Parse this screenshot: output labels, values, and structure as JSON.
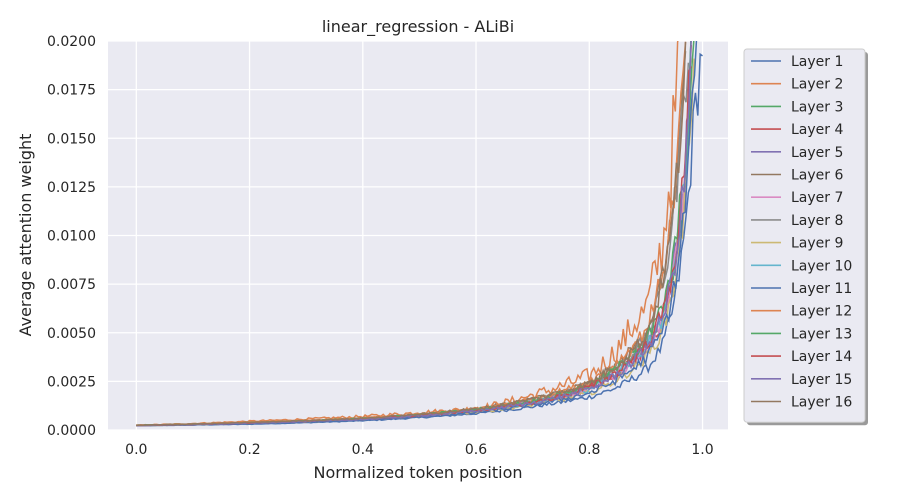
{
  "chart_data": {
    "type": "line",
    "title": "linear_regression - ALiBi",
    "xlabel": "Normalized token position",
    "ylabel": "Average attention weight",
    "xlim": [
      -0.05,
      1.045
    ],
    "ylim": [
      0,
      0.02
    ],
    "xticks": [
      "0.0",
      "0.2",
      "0.4",
      "0.6",
      "0.8",
      "1.0"
    ],
    "yticks": [
      "0.0000",
      "0.0025",
      "0.0050",
      "0.0075",
      "0.0100",
      "0.0125",
      "0.0150",
      "0.0175",
      "0.0200"
    ],
    "grid": true,
    "legend_position": "outside right, top",
    "series": [
      {
        "name": "Layer 1",
        "color": "#4c72b0",
        "values": [
          [
            0.0,
            0.00022
          ],
          [
            0.2,
            0.0003
          ],
          [
            0.4,
            0.00048
          ],
          [
            0.6,
            0.00085
          ],
          [
            0.7,
            0.0012
          ],
          [
            0.8,
            0.0017
          ],
          [
            0.85,
            0.0022
          ],
          [
            0.9,
            0.0031
          ],
          [
            0.93,
            0.0044
          ],
          [
            0.95,
            0.0065
          ],
          [
            0.97,
            0.0105
          ],
          [
            0.985,
            0.016
          ],
          [
            1.0,
            0.02
          ]
        ]
      },
      {
        "name": "Layer 2",
        "color": "#dd8452",
        "values": [
          [
            0.0,
            0.00025
          ],
          [
            0.2,
            0.00045
          ],
          [
            0.4,
            0.0007
          ],
          [
            0.5,
            0.0009
          ],
          [
            0.6,
            0.0011
          ],
          [
            0.7,
            0.0018
          ],
          [
            0.8,
            0.0028
          ],
          [
            0.85,
            0.0042
          ],
          [
            0.88,
            0.0055
          ],
          [
            0.9,
            0.0062
          ],
          [
            0.92,
            0.0085
          ],
          [
            0.93,
            0.0095
          ],
          [
            0.94,
            0.0125
          ],
          [
            0.95,
            0.0155
          ],
          [
            0.96,
            0.02
          ]
        ]
      },
      {
        "name": "Layer 3",
        "color": "#55a868",
        "values": [
          [
            0.0,
            0.00024
          ],
          [
            0.2,
            0.00038
          ],
          [
            0.4,
            0.00058
          ],
          [
            0.6,
            0.00105
          ],
          [
            0.7,
            0.0015
          ],
          [
            0.8,
            0.0023
          ],
          [
            0.85,
            0.0032
          ],
          [
            0.9,
            0.0045
          ],
          [
            0.93,
            0.006
          ],
          [
            0.95,
            0.0085
          ],
          [
            0.97,
            0.0135
          ],
          [
            0.985,
            0.02
          ]
        ]
      },
      {
        "name": "Layer 4",
        "color": "#c44e52",
        "values": [
          [
            0.0,
            0.00023
          ],
          [
            0.2,
            0.00036
          ],
          [
            0.4,
            0.00056
          ],
          [
            0.6,
            0.001
          ],
          [
            0.7,
            0.0014
          ],
          [
            0.8,
            0.0021
          ],
          [
            0.85,
            0.0029
          ],
          [
            0.9,
            0.0042
          ],
          [
            0.93,
            0.0058
          ],
          [
            0.95,
            0.0082
          ],
          [
            0.97,
            0.013
          ],
          [
            0.98,
            0.02
          ]
        ]
      },
      {
        "name": "Layer 5",
        "color": "#8172b3",
        "values": [
          [
            0.0,
            0.00024
          ],
          [
            0.2,
            0.00037
          ],
          [
            0.4,
            0.00057
          ],
          [
            0.6,
            0.001
          ],
          [
            0.7,
            0.0014
          ],
          [
            0.8,
            0.0022
          ],
          [
            0.85,
            0.003
          ],
          [
            0.9,
            0.0043
          ],
          [
            0.93,
            0.006
          ],
          [
            0.95,
            0.0086
          ],
          [
            0.97,
            0.0138
          ],
          [
            0.98,
            0.02
          ]
        ]
      },
      {
        "name": "Layer 6",
        "color": "#937860",
        "values": [
          [
            0.0,
            0.00024
          ],
          [
            0.2,
            0.00038
          ],
          [
            0.4,
            0.0006
          ],
          [
            0.6,
            0.0011
          ],
          [
            0.7,
            0.0016
          ],
          [
            0.8,
            0.0024
          ],
          [
            0.85,
            0.0034
          ],
          [
            0.9,
            0.005
          ],
          [
            0.92,
            0.0068
          ],
          [
            0.94,
            0.0095
          ],
          [
            0.96,
            0.015
          ],
          [
            0.97,
            0.02
          ]
        ]
      },
      {
        "name": "Layer 7",
        "color": "#da8bc3",
        "values": [
          [
            0.0,
            0.00023
          ],
          [
            0.2,
            0.00036
          ],
          [
            0.4,
            0.00055
          ],
          [
            0.6,
            0.00098
          ],
          [
            0.7,
            0.0014
          ],
          [
            0.8,
            0.0021
          ],
          [
            0.85,
            0.0029
          ],
          [
            0.9,
            0.0042
          ],
          [
            0.93,
            0.0058
          ],
          [
            0.95,
            0.0083
          ],
          [
            0.97,
            0.0132
          ],
          [
            0.98,
            0.02
          ]
        ]
      },
      {
        "name": "Layer 8",
        "color": "#8c8c8c",
        "values": [
          [
            0.0,
            0.00024
          ],
          [
            0.2,
            0.00038
          ],
          [
            0.4,
            0.00058
          ],
          [
            0.6,
            0.00105
          ],
          [
            0.7,
            0.0015
          ],
          [
            0.8,
            0.0023
          ],
          [
            0.85,
            0.0033
          ],
          [
            0.9,
            0.0047
          ],
          [
            0.92,
            0.0064
          ],
          [
            0.94,
            0.009
          ],
          [
            0.96,
            0.0145
          ],
          [
            0.975,
            0.02
          ]
        ]
      },
      {
        "name": "Layer 9",
        "color": "#ccb974",
        "values": [
          [
            0.0,
            0.00022
          ],
          [
            0.2,
            0.00034
          ],
          [
            0.4,
            0.00052
          ],
          [
            0.6,
            0.00092
          ],
          [
            0.7,
            0.0013
          ],
          [
            0.8,
            0.0019
          ],
          [
            0.85,
            0.0026
          ],
          [
            0.9,
            0.0037
          ],
          [
            0.93,
            0.0052
          ],
          [
            0.95,
            0.0075
          ],
          [
            0.97,
            0.012
          ],
          [
            0.985,
            0.02
          ]
        ]
      },
      {
        "name": "Layer 10",
        "color": "#64b5cd",
        "values": [
          [
            0.0,
            0.00023
          ],
          [
            0.2,
            0.00036
          ],
          [
            0.4,
            0.00055
          ],
          [
            0.6,
            0.00098
          ],
          [
            0.7,
            0.0014
          ],
          [
            0.8,
            0.0021
          ],
          [
            0.85,
            0.0029
          ],
          [
            0.9,
            0.0042
          ],
          [
            0.93,
            0.0058
          ],
          [
            0.95,
            0.0084
          ],
          [
            0.97,
            0.0134
          ],
          [
            0.98,
            0.02
          ]
        ]
      },
      {
        "name": "Layer 11",
        "color": "#4c72b0",
        "values": [
          [
            0.0,
            0.00022
          ],
          [
            0.2,
            0.00033
          ],
          [
            0.4,
            0.0005
          ],
          [
            0.6,
            0.0009
          ],
          [
            0.7,
            0.0013
          ],
          [
            0.8,
            0.0019
          ],
          [
            0.85,
            0.0026
          ],
          [
            0.9,
            0.0037
          ],
          [
            0.93,
            0.0051
          ],
          [
            0.95,
            0.0073
          ],
          [
            0.97,
            0.0118
          ],
          [
            0.985,
            0.0185
          ],
          [
            0.99,
            0.02
          ]
        ]
      },
      {
        "name": "Layer 12",
        "color": "#dd8452",
        "values": [
          [
            0.0,
            0.00024
          ],
          [
            0.2,
            0.0004
          ],
          [
            0.4,
            0.00062
          ],
          [
            0.6,
            0.0011
          ],
          [
            0.7,
            0.0016
          ],
          [
            0.8,
            0.0025
          ],
          [
            0.85,
            0.0035
          ],
          [
            0.9,
            0.0052
          ],
          [
            0.92,
            0.007
          ],
          [
            0.94,
            0.0098
          ],
          [
            0.96,
            0.0155
          ],
          [
            0.97,
            0.02
          ]
        ]
      },
      {
        "name": "Layer 13",
        "color": "#55a868",
        "values": [
          [
            0.0,
            0.00024
          ],
          [
            0.2,
            0.00038
          ],
          [
            0.4,
            0.00059
          ],
          [
            0.6,
            0.00106
          ],
          [
            0.7,
            0.0015
          ],
          [
            0.8,
            0.0023
          ],
          [
            0.85,
            0.0032
          ],
          [
            0.9,
            0.0046
          ],
          [
            0.93,
            0.0063
          ],
          [
            0.95,
            0.009
          ],
          [
            0.97,
            0.0142
          ],
          [
            0.98,
            0.02
          ]
        ]
      },
      {
        "name": "Layer 14",
        "color": "#c44e52",
        "values": [
          [
            0.0,
            0.00023
          ],
          [
            0.2,
            0.00036
          ],
          [
            0.4,
            0.00056
          ],
          [
            0.6,
            0.001
          ],
          [
            0.7,
            0.0014
          ],
          [
            0.8,
            0.0022
          ],
          [
            0.85,
            0.003
          ],
          [
            0.9,
            0.0044
          ],
          [
            0.93,
            0.006
          ],
          [
            0.95,
            0.0087
          ],
          [
            0.97,
            0.0139
          ],
          [
            0.98,
            0.02
          ]
        ]
      },
      {
        "name": "Layer 15",
        "color": "#8172b3",
        "values": [
          [
            0.0,
            0.00023
          ],
          [
            0.2,
            0.00036
          ],
          [
            0.4,
            0.00055
          ],
          [
            0.6,
            0.00099
          ],
          [
            0.7,
            0.0014
          ],
          [
            0.8,
            0.0021
          ],
          [
            0.85,
            0.0029
          ],
          [
            0.9,
            0.0042
          ],
          [
            0.93,
            0.0058
          ],
          [
            0.95,
            0.0084
          ],
          [
            0.97,
            0.0134
          ],
          [
            0.98,
            0.02
          ]
        ]
      },
      {
        "name": "Layer 16",
        "color": "#937860",
        "values": [
          [
            0.0,
            0.00024
          ],
          [
            0.2,
            0.00039
          ],
          [
            0.4,
            0.0006
          ],
          [
            0.6,
            0.00108
          ],
          [
            0.7,
            0.0016
          ],
          [
            0.8,
            0.0024
          ],
          [
            0.85,
            0.0034
          ],
          [
            0.9,
            0.0049
          ],
          [
            0.92,
            0.0066
          ],
          [
            0.94,
            0.0093
          ],
          [
            0.96,
            0.0148
          ],
          [
            0.97,
            0.02
          ]
        ]
      }
    ]
  }
}
